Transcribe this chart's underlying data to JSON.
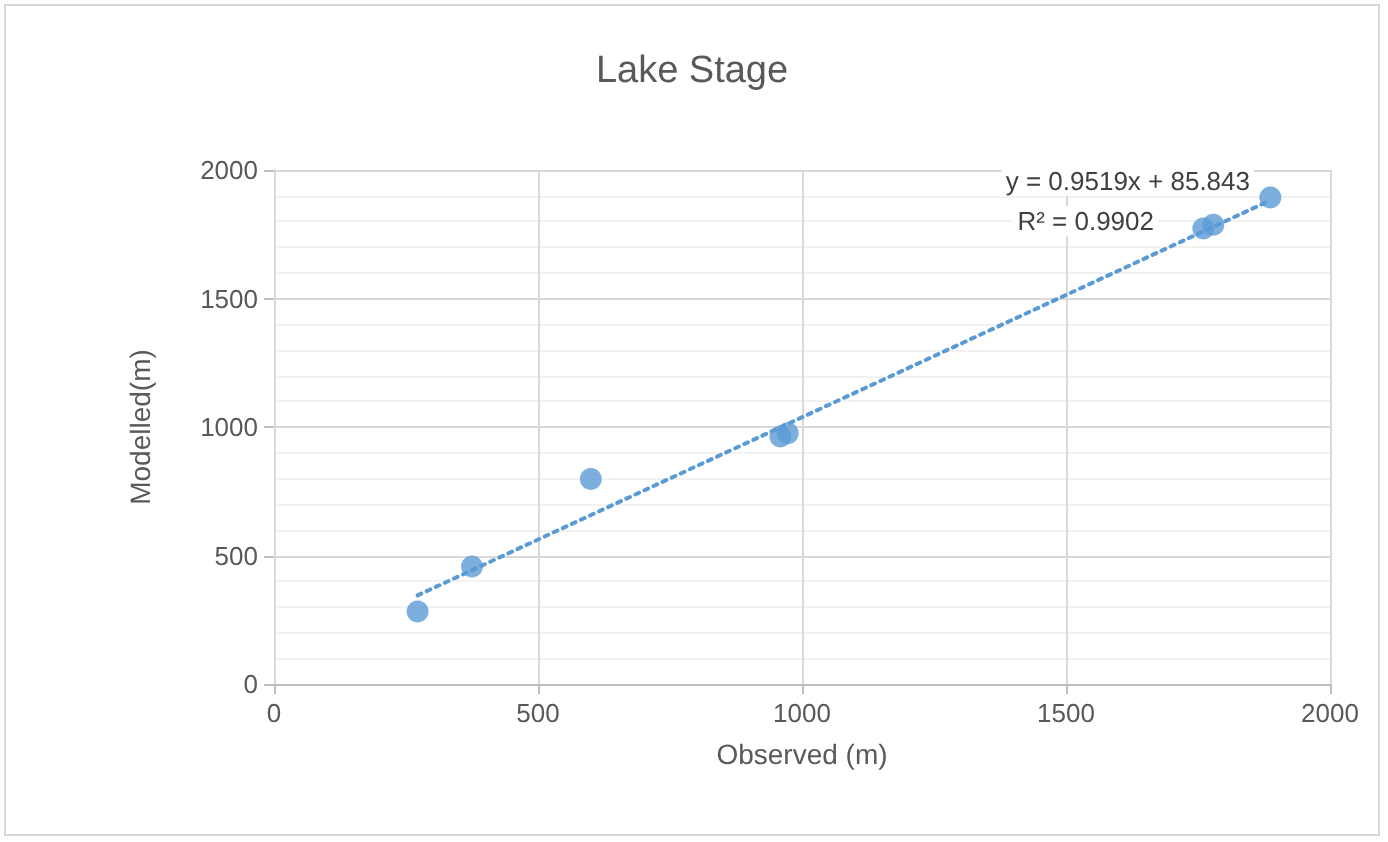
{
  "chart_data": {
    "type": "scatter",
    "title": "Lake Stage",
    "xlabel": "Observed (m)",
    "ylabel": "Modelled(m)",
    "xlim": [
      0,
      2000
    ],
    "xticks": [
      0,
      500,
      1000,
      1500,
      2000
    ],
    "ylim": [
      0,
      2000
    ],
    "yticks": [
      0,
      500,
      1000,
      1500,
      2000
    ],
    "grid": true,
    "marker": "circle",
    "annotations": [
      "y = 0.9519x + 85.843",
      "R² = 0.9902"
    ],
    "series": [
      {
        "color": "#5b9bd5",
        "x": [
          272,
          375,
          600,
          959,
          973,
          1760,
          1779,
          1887
        ],
        "values": [
          282,
          457,
          798,
          963,
          976,
          1772,
          1787,
          1893
        ]
      },
      {
        "type": "line",
        "color": "#5b9bd5",
        "line_style": "dotted",
        "marker": "none",
        "x": [
          272,
          1887
        ],
        "values": [
          345,
          1882
        ]
      }
    ]
  }
}
